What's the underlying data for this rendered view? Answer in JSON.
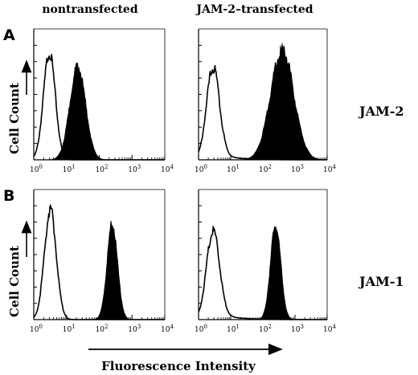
{
  "figure": {
    "col_headers": [
      "nontransfected",
      "JAM-2–transfected"
    ],
    "panel_letters": [
      "A",
      "B"
    ],
    "row_labels": [
      "JAM-2",
      "JAM-1"
    ],
    "y_axis_label": "Cell Count",
    "x_axis_label": "Fluorescence Intensity",
    "tick_base": "10",
    "tick_exponents": [
      "0",
      "1",
      "2",
      "3",
      "4"
    ]
  },
  "colors": {
    "filled": "#000000",
    "outline": "#000000",
    "background": "#ffffff"
  },
  "chart_data": [
    {
      "type": "area",
      "panel": "A",
      "column": "nontransfected",
      "row_label": "JAM-2",
      "x_scale": "log",
      "xlim": [
        1,
        10000
      ],
      "xlabel": "",
      "ylabel": "Cell Count",
      "series": [
        {
          "style": "outline",
          "peak_x": 3,
          "width_decades": 0.18,
          "peak": 0.82,
          "tail": 0.0
        },
        {
          "style": "filled",
          "peak_x": 22,
          "width_decades": 0.24,
          "peak": 0.72,
          "tail": 0.0
        }
      ]
    },
    {
      "type": "area",
      "panel": "A",
      "column": "JAM-2–transfected",
      "row_label": "JAM-2",
      "x_scale": "log",
      "xlim": [
        1,
        10000
      ],
      "xlabel": "",
      "ylabel": "",
      "series": [
        {
          "style": "outline",
          "peak_x": 2.8,
          "width_decades": 0.2,
          "peak": 0.7,
          "tail": 0.05
        },
        {
          "style": "filled",
          "peak_x": 400,
          "width_decades": 0.36,
          "peak": 0.85,
          "tail": 0.0
        }
      ]
    },
    {
      "type": "area",
      "panel": "B",
      "column": "nontransfected",
      "row_label": "JAM-1",
      "x_scale": "log",
      "xlim": [
        1,
        10000
      ],
      "xlabel": "",
      "ylabel": "Cell Count",
      "series": [
        {
          "style": "outline",
          "peak_x": 3.2,
          "width_decades": 0.18,
          "peak": 0.85,
          "tail": 0.0
        },
        {
          "style": "filled",
          "peak_x": 250,
          "width_decades": 0.16,
          "peak": 0.75,
          "tail": 0.0
        }
      ]
    },
    {
      "type": "area",
      "panel": "B",
      "column": "JAM-2–transfected",
      "row_label": "JAM-1",
      "x_scale": "log",
      "xlim": [
        1,
        10000
      ],
      "xlabel": "Fluorescence Intensity",
      "ylabel": "",
      "series": [
        {
          "style": "outline",
          "peak_x": 2.8,
          "width_decades": 0.2,
          "peak": 0.68,
          "tail": 0.05
        },
        {
          "style": "filled",
          "peak_x": 250,
          "width_decades": 0.16,
          "peak": 0.74,
          "tail": 0.0
        }
      ]
    }
  ]
}
